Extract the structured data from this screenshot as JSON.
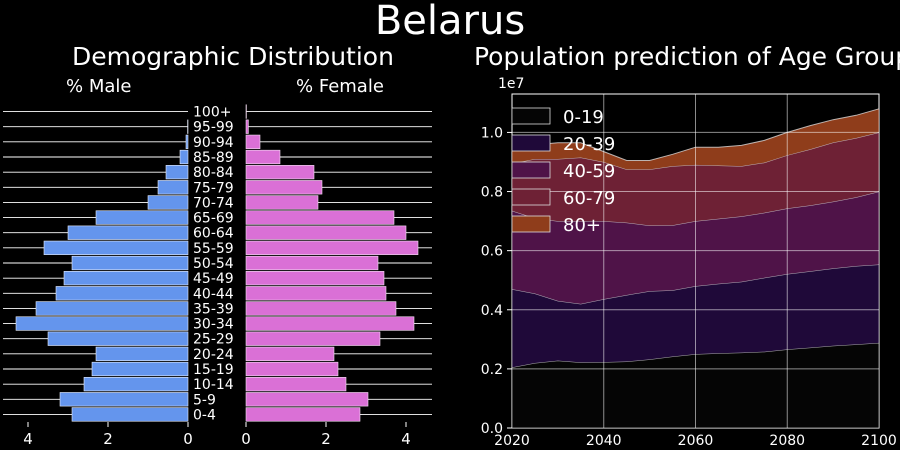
{
  "title": "Belarus",
  "chart_data": [
    {
      "type": "bar",
      "title": "Demographic Distribution",
      "categories": [
        "0-4",
        "5-9",
        "10-14",
        "15-19",
        "20-24",
        "25-29",
        "30-34",
        "35-39",
        "40-44",
        "45-49",
        "50-54",
        "55-59",
        "60-64",
        "65-69",
        "70-74",
        "75-79",
        "80-84",
        "85-89",
        "90-94",
        "95-99",
        "100+"
      ],
      "series": [
        {
          "name": "% Male",
          "values": [
            2.9,
            3.2,
            2.6,
            2.4,
            2.3,
            3.5,
            4.3,
            3.8,
            3.3,
            3.1,
            2.9,
            3.6,
            3.0,
            2.3,
            1.0,
            0.75,
            0.55,
            0.2,
            0.05,
            0.01,
            0.0
          ],
          "color": "#6495ed"
        },
        {
          "name": "% Female",
          "values": [
            2.85,
            3.05,
            2.5,
            2.3,
            2.2,
            3.35,
            4.2,
            3.75,
            3.5,
            3.45,
            3.3,
            4.3,
            4.0,
            3.7,
            1.8,
            1.9,
            1.7,
            0.85,
            0.35,
            0.06,
            0.01
          ],
          "color": "#da70d6"
        }
      ],
      "xticks_male": [
        "4",
        "2",
        "0"
      ],
      "xticks_female": [
        "0",
        "2",
        "4"
      ],
      "xlim": [
        0,
        4.6
      ]
    },
    {
      "type": "area",
      "title": "Population prediction of Age Groups",
      "x": [
        2020,
        2025,
        2030,
        2035,
        2040,
        2045,
        2050,
        2055,
        2060,
        2065,
        2070,
        2075,
        2080,
        2085,
        2090,
        2095,
        2100
      ],
      "series": [
        {
          "name": "0-19",
          "values": [
            0.205,
            0.22,
            0.228,
            0.222,
            0.223,
            0.225,
            0.232,
            0.242,
            0.25,
            0.253,
            0.255,
            0.258,
            0.266,
            0.272,
            0.278,
            0.283,
            0.288
          ],
          "color": "#050505"
        },
        {
          "name": "20-39",
          "values": [
            0.265,
            0.235,
            0.202,
            0.198,
            0.213,
            0.225,
            0.231,
            0.224,
            0.23,
            0.235,
            0.24,
            0.25,
            0.255,
            0.258,
            0.262,
            0.265,
            0.265
          ],
          "color": "#1f0939"
        },
        {
          "name": "40-59",
          "values": [
            0.265,
            0.255,
            0.27,
            0.28,
            0.264,
            0.245,
            0.222,
            0.22,
            0.22,
            0.22,
            0.221,
            0.22,
            0.222,
            0.223,
            0.226,
            0.233,
            0.247
          ],
          "color": "#4f1348"
        },
        {
          "name": "60-79",
          "values": [
            0.16,
            0.2,
            0.21,
            0.215,
            0.2,
            0.18,
            0.19,
            0.2,
            0.19,
            0.18,
            0.17,
            0.17,
            0.18,
            0.19,
            0.2,
            0.2,
            0.2
          ],
          "color": "#6e2135"
        },
        {
          "name": "80+",
          "values": [
            0.045,
            0.048,
            0.055,
            0.05,
            0.035,
            0.03,
            0.03,
            0.04,
            0.06,
            0.062,
            0.07,
            0.075,
            0.077,
            0.08,
            0.077,
            0.077,
            0.08
          ],
          "color": "#8f3d1b"
        }
      ],
      "xticks": [
        2020,
        2040,
        2060,
        2080,
        2100
      ],
      "yticks": [
        0.0,
        0.2,
        0.4,
        0.6,
        0.8,
        1.0
      ],
      "xlim": [
        2020,
        2100
      ],
      "ylim": [
        0,
        1.13
      ],
      "ylabel_scale": "1e7",
      "legend": "top-left",
      "grid": true
    }
  ]
}
